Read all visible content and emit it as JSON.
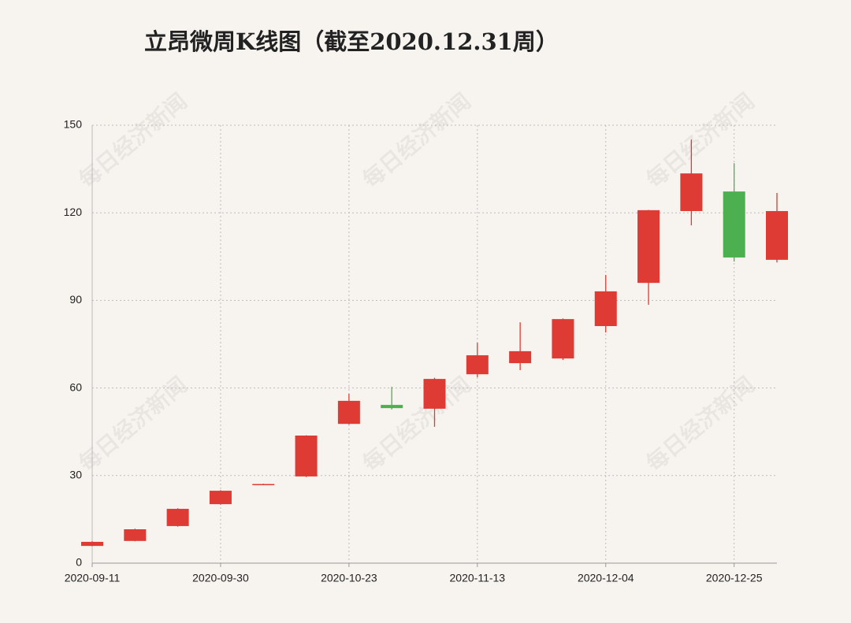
{
  "chart_data": {
    "type": "candlestick",
    "title": "立昂微周K线图（截至2020.12.31周）",
    "watermark": "每日经济新闻",
    "categories": [
      "2020-09-11",
      null,
      null,
      "2020-09-30",
      null,
      null,
      "2020-10-23",
      null,
      null,
      "2020-11-13",
      null,
      null,
      "2020-12-04",
      null,
      null,
      "2020-12-25",
      null
    ],
    "open": [
      5.9,
      7.6,
      12.7,
      20.2,
      26.8,
      29.7,
      47.7,
      54.2,
      52.9,
      64.7,
      68.5,
      70.1,
      81.2,
      96.0,
      120.6,
      127.3,
      103.9
    ],
    "high": [
      7.5,
      11.8,
      18.8,
      25.0,
      27.2,
      43.8,
      58.0,
      60.4,
      63.5,
      75.5,
      82.5,
      83.8,
      98.7,
      121.0,
      145.1,
      137.0,
      126.8
    ],
    "low": [
      5.8,
      7.5,
      12.5,
      20.0,
      26.7,
      29.5,
      47.5,
      52.6,
      46.7,
      63.7,
      66.1,
      69.6,
      79.0,
      88.5,
      115.7,
      103.3,
      103.0
    ],
    "close": [
      7.3,
      11.6,
      18.6,
      24.8,
      27.1,
      43.7,
      55.6,
      53.1,
      63.1,
      71.2,
      72.6,
      83.6,
      93.1,
      120.9,
      133.5,
      104.7,
      120.6
    ],
    "up_color": "#de3b34",
    "down_color": "#4caf50",
    "ylim": [
      0,
      150
    ],
    "yticks": [
      0,
      30,
      60,
      90,
      120,
      150
    ],
    "grid": true
  }
}
